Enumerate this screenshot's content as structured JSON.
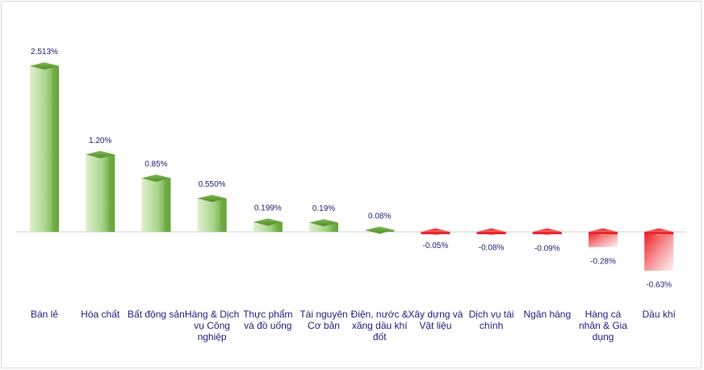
{
  "chart_data": {
    "type": "bar",
    "categories": [
      "Bán lẻ",
      "Hóa chất",
      "Bất động sản",
      "Hàng & Dịch vụ Công nghiệp",
      "Thực phẩm và đồ uống",
      "Tài nguyên Cơ bản",
      "Điện, nước & xăng dầu khí đốt",
      "Xây dựng và Vật liệu",
      "Dịch vụ tài chính",
      "Ngân hàng",
      "Hàng cá nhân & Gia dụng",
      "Dầu khí"
    ],
    "values": [
      2.513,
      1.2,
      0.85,
      0.55,
      0.199,
      0.19,
      0.08,
      -0.05,
      -0.08,
      -0.09,
      -0.28,
      -0.63
    ],
    "value_labels": [
      "2.513%",
      "1.20%",
      "0.85%",
      "0.550%",
      "0.199%",
      "0.19%",
      "0.08%",
      "-0.05%",
      "-0.08%",
      "-0.09%",
      "-0.28%",
      "-0.63%"
    ],
    "title": "",
    "xlabel": "",
    "ylabel": "",
    "unit": "%",
    "grid": false,
    "legend": "none",
    "colors": {
      "positive": "#6aaa3a",
      "negative": "#e8262a",
      "text": "#1a1a7a"
    }
  }
}
